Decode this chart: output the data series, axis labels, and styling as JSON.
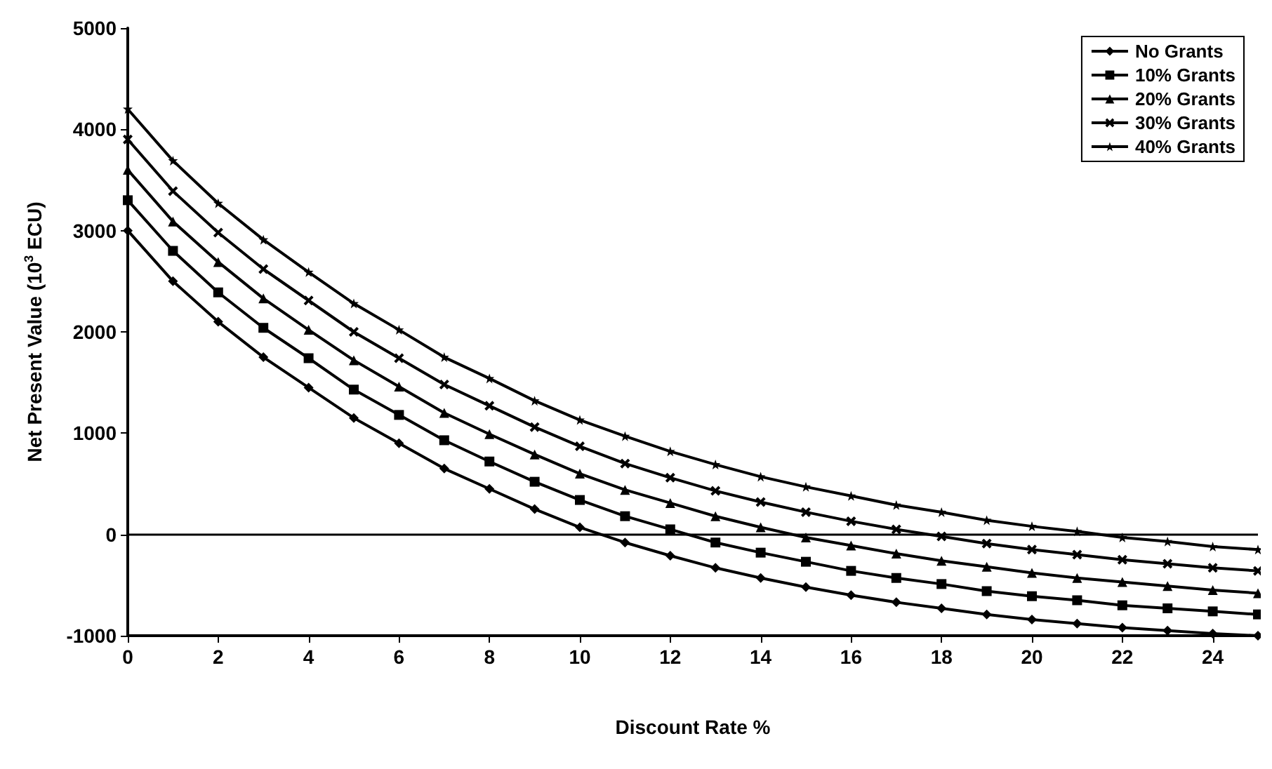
{
  "chart_data": {
    "type": "line",
    "xlabel": "Discount Rate %",
    "ylabel": "Net Present Value (10$^{3}$ ECU)",
    "x": [
      0,
      1,
      2,
      3,
      4,
      5,
      6,
      7,
      8,
      9,
      10,
      11,
      12,
      13,
      14,
      15,
      16,
      17,
      18,
      19,
      20,
      21,
      22,
      23,
      24,
      25
    ],
    "xlim": [
      0,
      25
    ],
    "xticks": [
      0,
      2,
      4,
      6,
      8,
      10,
      12,
      14,
      16,
      18,
      20,
      22,
      24
    ],
    "ylim": [
      -1000,
      5000
    ],
    "yticks": [
      -1000,
      0,
      1000,
      2000,
      3000,
      4000,
      5000
    ],
    "grid": false,
    "legend": "top right",
    "line_style": "solid",
    "ref_lines": [
      {
        "axis": "y",
        "value": 0,
        "color": "#000000"
      }
    ],
    "series": [
      {
        "name": "No Grants",
        "color": "#000000",
        "marker": "diamond",
        "values": [
          3000,
          2500,
          2100,
          1750,
          1450,
          1150,
          900,
          650,
          450,
          250,
          70,
          -80,
          -210,
          -330,
          -430,
          -520,
          -600,
          -670,
          -730,
          -790,
          -840,
          -880,
          -920,
          -950,
          -980,
          -1000
        ]
      },
      {
        "name": "10% Grants",
        "color": "#000000",
        "marker": "square",
        "values": [
          3300,
          2800,
          2390,
          2040,
          1740,
          1430,
          1180,
          930,
          720,
          520,
          340,
          180,
          50,
          -80,
          -180,
          -270,
          -360,
          -430,
          -490,
          -560,
          -610,
          -650,
          -700,
          -730,
          -760,
          -790
        ]
      },
      {
        "name": "20% Grants",
        "color": "#000000",
        "marker": "triangle",
        "values": [
          3600,
          3090,
          2690,
          2330,
          2020,
          1720,
          1460,
          1200,
          990,
          790,
          600,
          440,
          310,
          180,
          70,
          -30,
          -110,
          -190,
          -260,
          -320,
          -380,
          -430,
          -470,
          -510,
          -550,
          -580
        ]
      },
      {
        "name": "30% Grants",
        "color": "#000000",
        "marker": "cross",
        "values": [
          3900,
          3390,
          2980,
          2620,
          2310,
          2000,
          1740,
          1480,
          1270,
          1060,
          870,
          700,
          560,
          430,
          320,
          220,
          130,
          50,
          -20,
          -90,
          -150,
          -200,
          -250,
          -290,
          -330,
          -360
        ]
      },
      {
        "name": "40% Grants",
        "color": "#000000",
        "marker": "star",
        "values": [
          4200,
          3690,
          3270,
          2910,
          2590,
          2280,
          2020,
          1750,
          1540,
          1320,
          1130,
          970,
          820,
          690,
          570,
          470,
          380,
          290,
          220,
          140,
          80,
          30,
          -30,
          -70,
          -120,
          -150
        ]
      }
    ]
  }
}
